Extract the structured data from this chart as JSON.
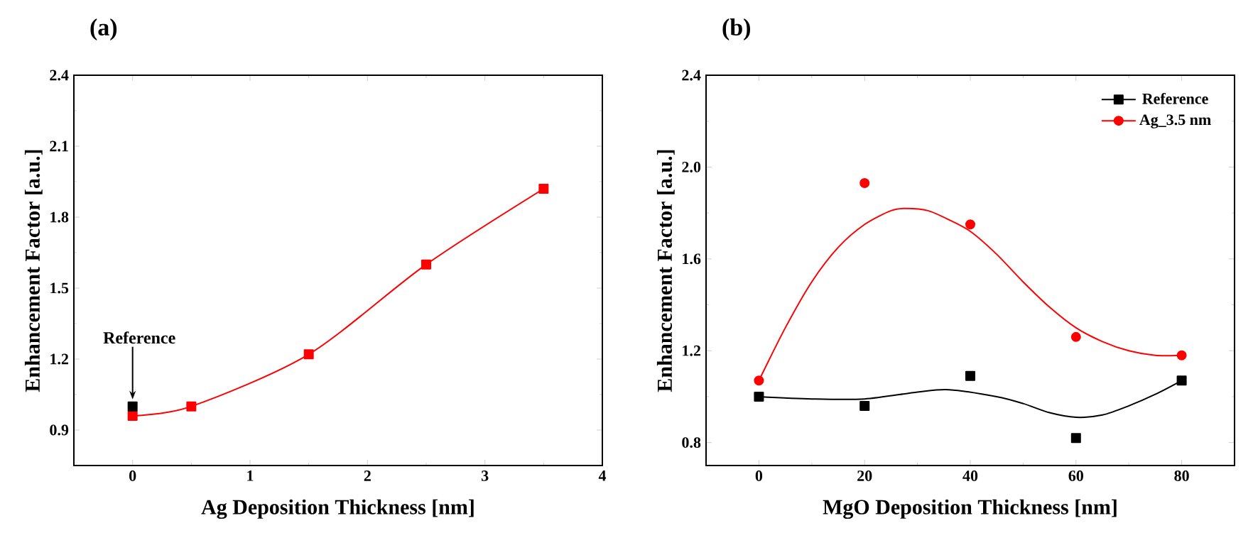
{
  "chart_data": [
    {
      "type": "line",
      "title": "(a)",
      "xlabel": "Ag Deposition Thickness [nm]",
      "ylabel": "Enhancement Factor [a.u.]",
      "x": [
        0,
        0.5,
        1.5,
        2.5,
        3.5
      ],
      "series": [
        {
          "color": "#ff0000",
          "values": [
            0.96,
            1.0,
            1.22,
            1.6,
            1.92
          ],
          "marker": "square"
        },
        {
          "type": "scatter",
          "x": [
            0
          ],
          "color": "#000000",
          "values": [
            1.0
          ],
          "marker": "square"
        }
      ],
      "xlim": [
        -0.5,
        4
      ],
      "xticks": [
        0,
        1,
        2,
        3,
        4
      ],
      "ylim": [
        0.75,
        2.4
      ],
      "yticks": [
        0.9,
        1.2,
        1.5,
        1.8,
        2.1,
        2.4
      ],
      "annotations": [
        {
          "text": "Reference",
          "x": 0,
          "y": 1.0
        }
      ]
    },
    {
      "type": "scatter",
      "title": "(b)",
      "xlabel": "MgO Deposition Thickness [nm]",
      "ylabel": "Enhancement Factor [a.u.]",
      "x": [
        0,
        20,
        40,
        60,
        80
      ],
      "series": [
        {
          "name": "Reference",
          "color": "#000000",
          "values": [
            1.0,
            0.96,
            1.09,
            0.82,
            1.07
          ],
          "marker": "square"
        },
        {
          "name": "Ag_3.5 nm",
          "color": "#ff0000",
          "values": [
            1.07,
            1.93,
            1.75,
            1.26,
            1.18
          ],
          "marker": "circle"
        },
        {
          "type": "line",
          "color": "#000000",
          "x": [
            0,
            10,
            20,
            30,
            36,
            45,
            50,
            55,
            60,
            65,
            70,
            75,
            80
          ],
          "values": [
            1.0,
            0.99,
            0.99,
            1.02,
            1.03,
            1.0,
            0.97,
            0.93,
            0.91,
            0.92,
            0.96,
            1.01,
            1.07
          ]
        },
        {
          "type": "line",
          "color": "#ff0000",
          "x": [
            0,
            5,
            10,
            15,
            20,
            25,
            28,
            32,
            36,
            40,
            45,
            50,
            55,
            60,
            65,
            70,
            75,
            80
          ],
          "values": [
            1.07,
            1.3,
            1.5,
            1.65,
            1.75,
            1.81,
            1.82,
            1.81,
            1.77,
            1.72,
            1.62,
            1.5,
            1.39,
            1.3,
            1.24,
            1.2,
            1.18,
            1.18
          ]
        }
      ],
      "xlim": [
        -10,
        90
      ],
      "xticks": [
        0,
        20,
        40,
        60,
        80
      ],
      "ylim": [
        0.7,
        2.4
      ],
      "yticks": [
        0.8,
        1.2,
        1.6,
        {
          "value": 2,
          "label": "2.0"
        },
        2.4
      ],
      "legend": "top right"
    }
  ]
}
